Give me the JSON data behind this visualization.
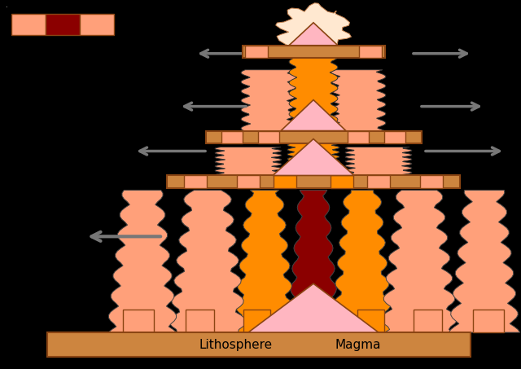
{
  "bg_color": "#000000",
  "litho_color": "#cd853f",
  "litho_border": "#8b4513",
  "magma_fill": "#ffb6c1",
  "normal_color": "#ffa07a",
  "normal2_color": "#ff8c00",
  "reversed_color": "#8b0000",
  "plate_color": "#cd853f",
  "plate_border": "#8b4513",
  "arrow_color": "#777777",
  "legend_normal": "#ffa07a",
  "legend_reversed": "#8b0000",
  "legend_normal2": "#ff8c00",
  "text_color": "#000000",
  "lithosphere_label": "Lithosphere",
  "magma_label": "Magma"
}
